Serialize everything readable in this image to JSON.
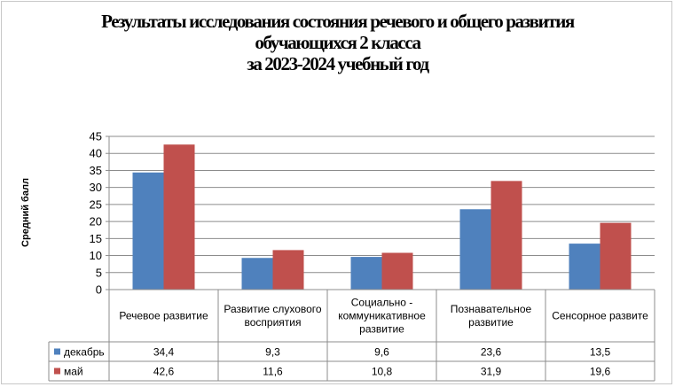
{
  "title_lines": [
    "Результаты исследования состояния речевого и общего развития",
    "обучающихся 2 класса",
    "за 2023-2024 учебный год"
  ],
  "chart_data": {
    "type": "bar",
    "title": "Результаты исследования состояния речевого и общего развития обучающихся 2 класса за 2023-2024 учебный год",
    "ylabel": "Средний балл",
    "xlabel": "",
    "ylim": [
      0,
      45
    ],
    "yticks": [
      0,
      5,
      10,
      15,
      20,
      25,
      30,
      35,
      40,
      45
    ],
    "grid": true,
    "legend": "data-table",
    "categories": [
      [
        "Речевое развитие"
      ],
      [
        "Развитие слухового",
        "восприятия"
      ],
      [
        "Социально -",
        "коммуникативное",
        "развитие"
      ],
      [
        "Познавательное",
        "развитие"
      ],
      [
        "Сенсорное развите"
      ]
    ],
    "series": [
      {
        "name": "декабрь",
        "color": "#4f81bd",
        "values": [
          34.4,
          9.3,
          9.6,
          23.6,
          13.5
        ],
        "labels": [
          "34,4",
          "9,3",
          "9,6",
          "23,6",
          "13,5"
        ]
      },
      {
        "name": "май",
        "color": "#c0504d",
        "values": [
          42.6,
          11.6,
          10.8,
          31.9,
          19.6
        ],
        "labels": [
          "42,6",
          "11,6",
          "10,8",
          "31,9",
          "19,6"
        ]
      }
    ]
  }
}
